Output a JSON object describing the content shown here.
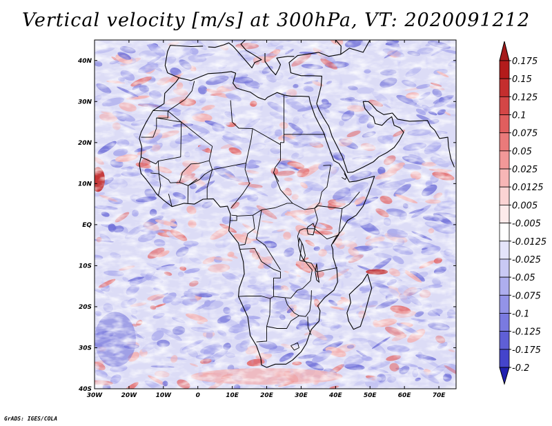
{
  "title": "Vertical velocity [m/s] at 300hPa, VT: 2020091212",
  "credit": "GrADS: IGES/COLA",
  "map": {
    "lon_range": [
      -30,
      75
    ],
    "lat_range": [
      -40,
      45
    ],
    "lat_ticks": [
      {
        "value": 40,
        "label": "40N"
      },
      {
        "value": 30,
        "label": "30N"
      },
      {
        "value": 20,
        "label": "20N"
      },
      {
        "value": 10,
        "label": "10N"
      },
      {
        "value": 0,
        "label": "EQ"
      },
      {
        "value": -10,
        "label": "10S"
      },
      {
        "value": -20,
        "label": "20S"
      },
      {
        "value": -30,
        "label": "30S"
      },
      {
        "value": -40,
        "label": "40S"
      }
    ],
    "lon_ticks": [
      {
        "value": -30,
        "label": "30W"
      },
      {
        "value": -20,
        "label": "20W"
      },
      {
        "value": -10,
        "label": "10W"
      },
      {
        "value": 0,
        "label": "0"
      },
      {
        "value": 10,
        "label": "10E"
      },
      {
        "value": 20,
        "label": "20E"
      },
      {
        "value": 30,
        "label": "30E"
      },
      {
        "value": 40,
        "label": "40E"
      },
      {
        "value": 50,
        "label": "50E"
      },
      {
        "value": 60,
        "label": "60E"
      },
      {
        "value": 70,
        "label": "70E"
      }
    ]
  },
  "colorbar": {
    "levels": [
      {
        "label": "0.175",
        "color": "#b31b1b"
      },
      {
        "label": "0.15",
        "color": "#c42e2e"
      },
      {
        "label": "0.125",
        "color": "#d44646"
      },
      {
        "label": "0.1",
        "color": "#e05e5e"
      },
      {
        "label": "0.075",
        "color": "#ea7a7a"
      },
      {
        "label": "0.05",
        "color": "#f29898"
      },
      {
        "label": "0.025",
        "color": "#f7b6b6"
      },
      {
        "label": "0.0125",
        "color": "#fbd3d3"
      },
      {
        "label": "0.005",
        "color": "#fdeaea"
      },
      {
        "label": "-0.005",
        "color": "#ffffff"
      },
      {
        "label": "-0.0125",
        "color": "#e4e4fa"
      },
      {
        "label": "-0.025",
        "color": "#c9c9f4"
      },
      {
        "label": "-0.05",
        "color": "#aeaeee"
      },
      {
        "label": "-0.075",
        "color": "#9393e7"
      },
      {
        "label": "-0.1",
        "color": "#7a7ae0"
      },
      {
        "label": "-0.125",
        "color": "#5f5fd6"
      },
      {
        "label": "-0.175",
        "color": "#4444cb"
      },
      {
        "label": "-0.2",
        "color": "#2c2cc0"
      }
    ],
    "top_color": "#a51a1a",
    "bottom_color": "#2020b0"
  },
  "palette": {
    "ocean_base": "#dcdcf6",
    "blue_mid": "#a9a9ec",
    "blue_deep": "#6f6fd8",
    "red_light": "#f4b0b0",
    "red_mid": "#e46a6a",
    "red_deep": "#c22a2a",
    "border": "#000000"
  }
}
